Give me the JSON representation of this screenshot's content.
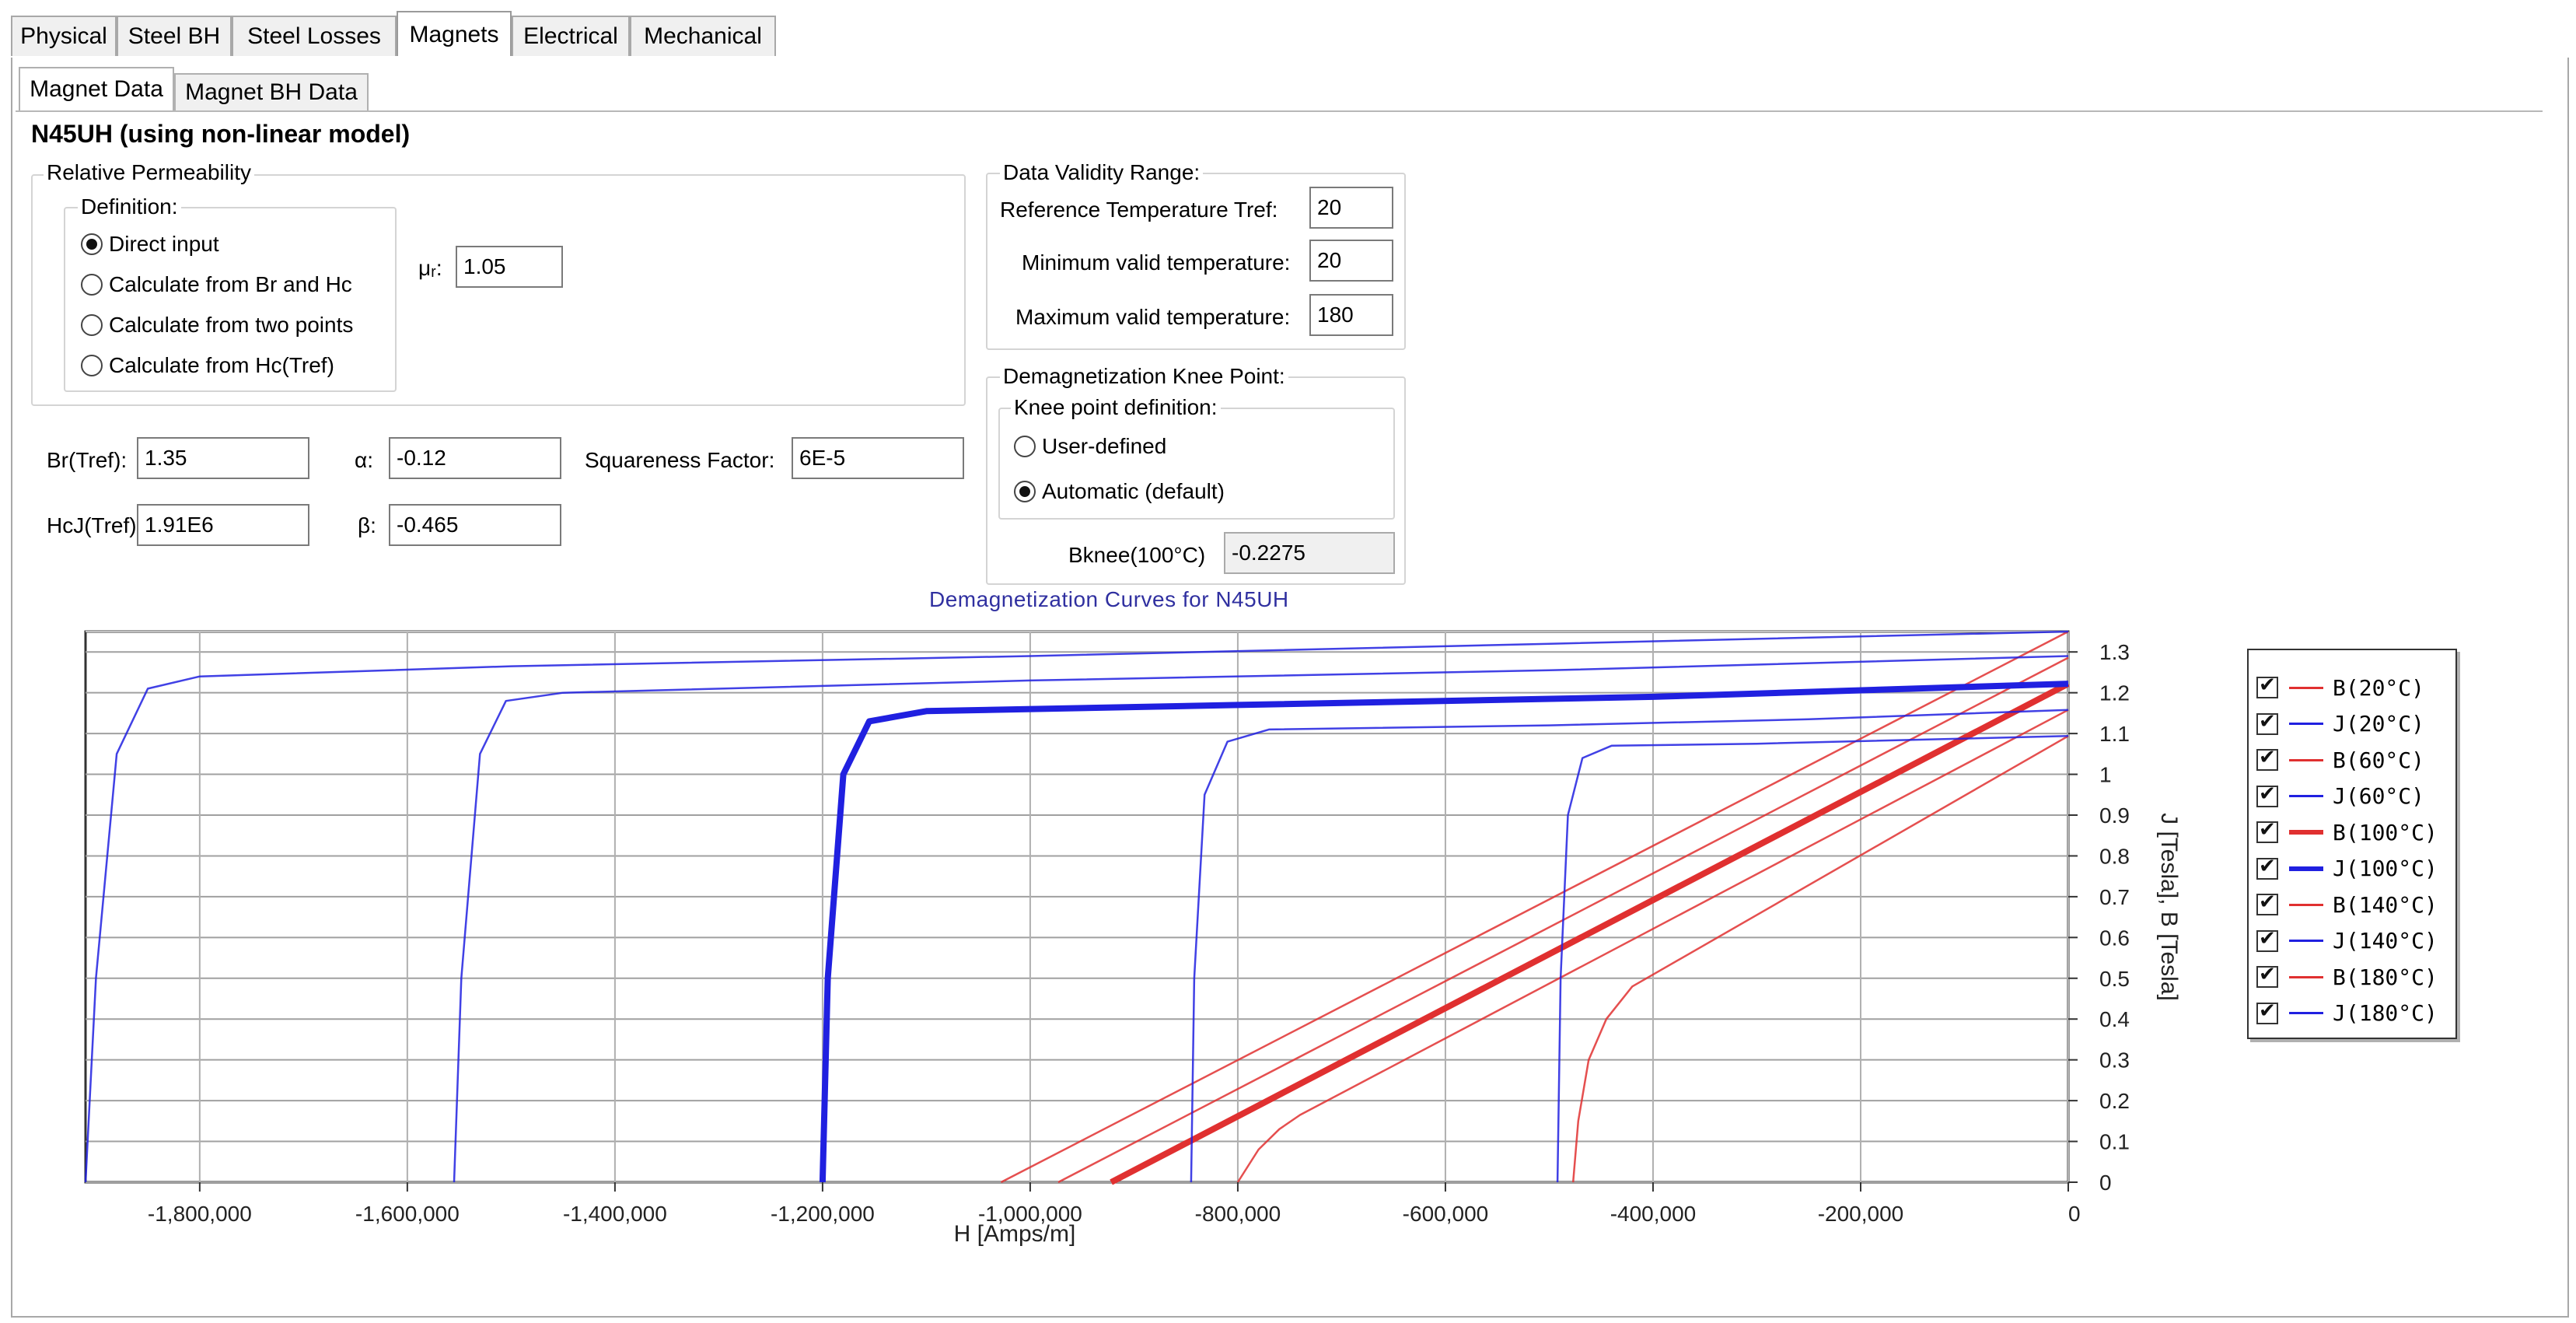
{
  "top_tabs": [
    "Physical",
    "Steel BH",
    "Steel Losses",
    "Magnets",
    "Electrical",
    "Mechanical"
  ],
  "active_top_tab": "Magnets",
  "sub_tabs": [
    "Magnet Data",
    "Magnet BH Data"
  ],
  "active_sub_tab": "Magnet Data",
  "material_title": "N45UH (using non-linear model)",
  "relative_permeability": {
    "legend": "Relative Permeability",
    "definition_legend": "Definition:",
    "options": [
      "Direct input",
      "Calculate from Br and Hc",
      "Calculate from two points",
      "Calculate from Hc(Tref)"
    ],
    "selected": "Direct input",
    "mu_label": "μᵣ:",
    "mu_value": "1.05"
  },
  "params": {
    "br_label": "Br(Tref):",
    "br_value": "1.35",
    "hcj_label": "HcJ(Tref):",
    "hcj_value": "1.91E6",
    "alpha_label": "α:",
    "alpha_value": "-0.12",
    "beta_label": "β:",
    "beta_value": "-0.465",
    "squareness_label": "Squareness Factor:",
    "squareness_value": "6E-5"
  },
  "validity": {
    "legend": "Data Validity Range:",
    "tref_label": "Reference Temperature Tref:",
    "tref_value": "20",
    "min_label": "Minimum valid temperature:",
    "min_value": "20",
    "max_label": "Maximum valid temperature:",
    "max_value": "180"
  },
  "knee": {
    "legend": "Demagnetization Knee Point:",
    "definition_legend": "Knee point definition:",
    "options": [
      "User-defined",
      "Automatic (default)"
    ],
    "selected": "Automatic (default)",
    "bknee_label": "Bknee(100°C)",
    "bknee_value": "-0.2275"
  },
  "colors": {
    "b_curve": "#e03030",
    "j_curve": "#2020e0",
    "accent_title": "#3030a0"
  },
  "chart_data": {
    "type": "line",
    "title": "Demagnetization Curves for N45UH",
    "xlabel": "H [Amps/m]",
    "ylabel": "J [Tesla], B [Tesla]",
    "xlim": [
      -1910000,
      0
    ],
    "ylim": [
      0,
      1.35
    ],
    "x_ticks": [
      "-1,800,000",
      "-1,600,000",
      "-1,400,000",
      "-1,200,000",
      "-1,000,000",
      "-800,000",
      "-600,000",
      "-400,000",
      "-200,000",
      "0"
    ],
    "y_ticks": [
      "1.3",
      "1.2",
      "1.1",
      "1",
      "0.9",
      "0.8",
      "0.7",
      "0.6",
      "0.5",
      "0.4",
      "0.3",
      "0.2",
      "0.1",
      "0"
    ],
    "grid": true,
    "legend_position": "right",
    "series": [
      {
        "name": "B(20°C)",
        "kind": "B",
        "color": "#e03030",
        "bold": false,
        "x": [
          -1028000,
          0
        ],
        "y": [
          0,
          1.35
        ]
      },
      {
        "name": "J(20°C)",
        "kind": "J",
        "color": "#2020e0",
        "bold": false,
        "x": [
          -1910000,
          -1900000,
          -1880000,
          -1850000,
          -1800000,
          -1500000,
          -1000000,
          -500000,
          0
        ],
        "y": [
          0,
          0.5,
          1.05,
          1.21,
          1.24,
          1.265,
          1.29,
          1.32,
          1.35
        ]
      },
      {
        "name": "B(60°C)",
        "kind": "B",
        "color": "#e03030",
        "bold": false,
        "x": [
          -973000,
          0
        ],
        "y": [
          0,
          1.286
        ]
      },
      {
        "name": "J(60°C)",
        "kind": "J",
        "color": "#2020e0",
        "bold": false,
        "x": [
          -1555000,
          -1548000,
          -1530000,
          -1505000,
          -1450000,
          -1000000,
          -500000,
          0
        ],
        "y": [
          0,
          0.5,
          1.05,
          1.18,
          1.2,
          1.23,
          1.255,
          1.29
        ]
      },
      {
        "name": "B(100°C)",
        "kind": "B",
        "color": "#e03030",
        "bold": true,
        "x": [
          -922000,
          0
        ],
        "y": [
          0,
          1.222
        ]
      },
      {
        "name": "J(100°C)",
        "kind": "J",
        "color": "#2020e0",
        "bold": true,
        "x": [
          -1200000,
          -1195000,
          -1180000,
          -1155000,
          -1100000,
          -800000,
          -400000,
          0
        ],
        "y": [
          0,
          0.5,
          1.0,
          1.13,
          1.155,
          1.17,
          1.19,
          1.222
        ]
      },
      {
        "name": "B(140°C)",
        "kind": "B",
        "color": "#e03030",
        "bold": false,
        "x": [
          -800000,
          -780000,
          -760000,
          -740000,
          0
        ],
        "y": [
          0,
          0.08,
          0.13,
          0.165,
          1.158
        ]
      },
      {
        "name": "J(140°C)",
        "kind": "J",
        "color": "#2020e0",
        "bold": false,
        "x": [
          -845000,
          -842000,
          -832000,
          -810000,
          -770000,
          -500000,
          -250000,
          0
        ],
        "y": [
          0,
          0.5,
          0.95,
          1.08,
          1.11,
          1.12,
          1.135,
          1.158
        ]
      },
      {
        "name": "B(180°C)",
        "kind": "B",
        "color": "#e03030",
        "bold": false,
        "x": [
          -477000,
          -472000,
          -462000,
          -445000,
          -420000,
          0
        ],
        "y": [
          0,
          0.15,
          0.3,
          0.4,
          0.48,
          1.094
        ]
      },
      {
        "name": "J(180°C)",
        "kind": "J",
        "color": "#2020e0",
        "bold": false,
        "x": [
          -492000,
          -489000,
          -482000,
          -468000,
          -440000,
          -300000,
          0
        ],
        "y": [
          0,
          0.5,
          0.9,
          1.04,
          1.07,
          1.075,
          1.094
        ]
      }
    ]
  }
}
